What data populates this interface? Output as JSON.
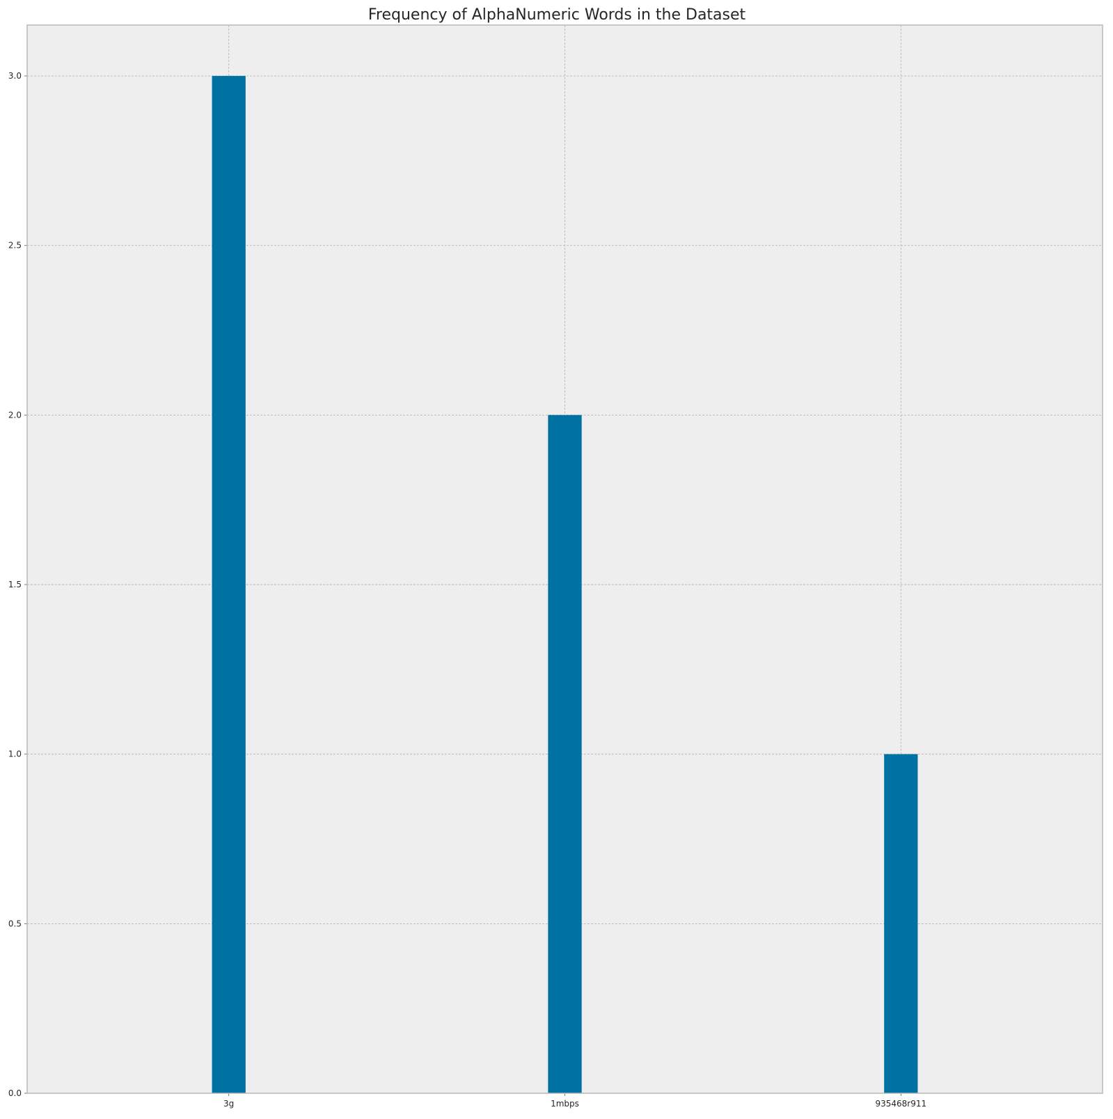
{
  "chart_data": {
    "type": "bar",
    "title": "Frequency of AlphaNumeric Words in the Dataset",
    "xlabel": "",
    "ylabel": "",
    "categories": [
      "3g",
      "1mbps",
      "935468r911"
    ],
    "values": [
      3,
      2,
      1
    ],
    "ylim": [
      0,
      3.15
    ],
    "yticks": [
      0.0,
      0.5,
      1.0,
      1.5,
      2.0,
      2.5,
      3.0
    ],
    "ytick_labels": [
      "0.0",
      "0.5",
      "1.0",
      "1.5",
      "2.0",
      "2.5",
      "3.0"
    ],
    "grid": true,
    "legend": "none",
    "colors": {
      "bar": "#0072a2",
      "plot_background": "#eeeeee",
      "grid": "#b0b0b0"
    }
  }
}
